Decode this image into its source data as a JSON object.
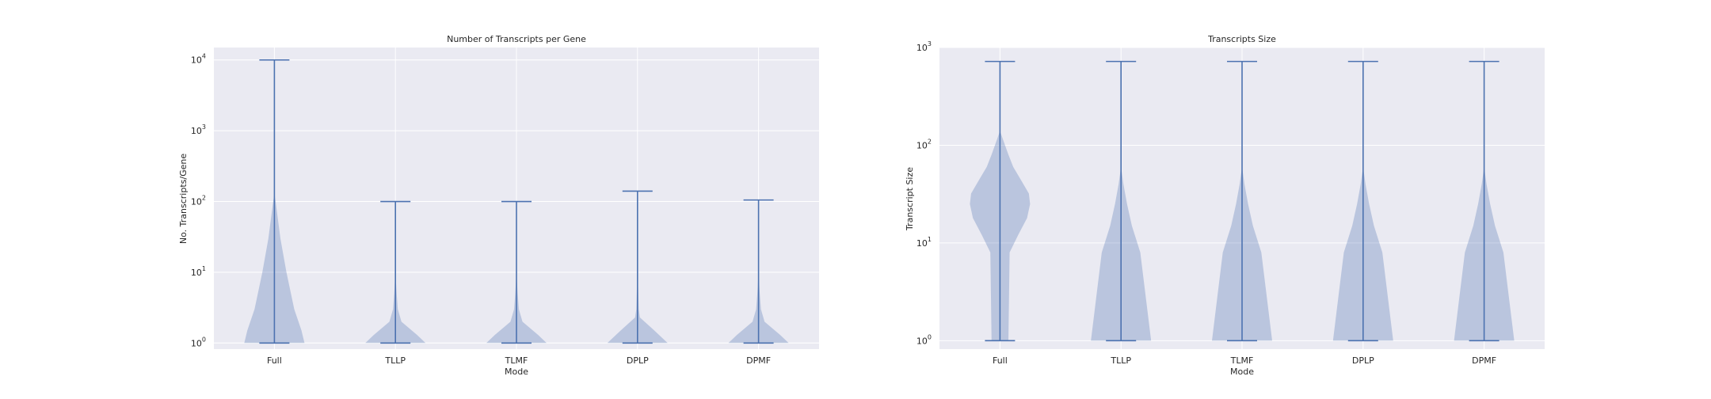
{
  "figure": {
    "background": "#ffffff",
    "plot_background": "#eaeaf2",
    "grid_color": "#ffffff",
    "violin_fill": "#4c72b0",
    "violin_alpha": 0.3,
    "line_color": "#4c72b0"
  },
  "chart_data": [
    {
      "type": "violin",
      "title": "Number of Transcripts per Gene",
      "xlabel": "Mode",
      "ylabel": "No. Transcripts/Gene",
      "yscale": "log",
      "ylim": [
        0.82,
        15000
      ],
      "grid": true,
      "categories": [
        "Full",
        "TLLP",
        "TLMF",
        "DPLP",
        "DPMF"
      ],
      "yticks": [
        {
          "base": "10",
          "exp": "0",
          "value": 1
        },
        {
          "base": "10",
          "exp": "1",
          "value": 10
        },
        {
          "base": "10",
          "exp": "2",
          "value": 100
        },
        {
          "base": "10",
          "exp": "3",
          "value": 1000
        },
        {
          "base": "10",
          "exp": "4",
          "value": 10000
        }
      ],
      "series": [
        {
          "category": "Full",
          "min": 1,
          "max": 10000,
          "density": [
            [
              1,
              0.5
            ],
            [
              1.5,
              0.45
            ],
            [
              3,
              0.33
            ],
            [
              10,
              0.2
            ],
            [
              30,
              0.1
            ],
            [
              100,
              0.02
            ],
            [
              130,
              0.0
            ]
          ]
        },
        {
          "category": "TLLP",
          "min": 1,
          "max": 100,
          "density": [
            [
              1,
              0.5
            ],
            [
              1.3,
              0.36
            ],
            [
              2,
              0.1
            ],
            [
              3,
              0.04
            ],
            [
              5,
              0.02
            ],
            [
              10,
              0.0
            ]
          ]
        },
        {
          "category": "TLMF",
          "min": 1,
          "max": 100,
          "density": [
            [
              1,
              0.5
            ],
            [
              1.3,
              0.36
            ],
            [
              2,
              0.1
            ],
            [
              3,
              0.04
            ],
            [
              5,
              0.02
            ],
            [
              10,
              0.0
            ]
          ]
        },
        {
          "category": "DPLP",
          "min": 1,
          "max": 140,
          "density": [
            [
              1,
              0.5
            ],
            [
              1.5,
              0.28
            ],
            [
              2.3,
              0.04
            ],
            [
              3,
              0.02
            ],
            [
              6,
              0.01
            ],
            [
              10,
              0.0
            ]
          ]
        },
        {
          "category": "DPMF",
          "min": 1,
          "max": 105,
          "density": [
            [
              1,
              0.5
            ],
            [
              1.3,
              0.36
            ],
            [
              2,
              0.1
            ],
            [
              3,
              0.04
            ],
            [
              5,
              0.02
            ],
            [
              10,
              0.0
            ]
          ]
        }
      ]
    },
    {
      "type": "violin",
      "title": "Transcripts Size",
      "xlabel": "Mode",
      "ylabel": "Transcript Size",
      "yscale": "log",
      "ylim": [
        0.82,
        1000
      ],
      "grid": true,
      "categories": [
        "Full",
        "TLLP",
        "TLMF",
        "DPLP",
        "DPMF"
      ],
      "yticks": [
        {
          "base": "10",
          "exp": "0",
          "value": 1
        },
        {
          "base": "10",
          "exp": "1",
          "value": 10
        },
        {
          "base": "10",
          "exp": "2",
          "value": 100
        },
        {
          "base": "10",
          "exp": "3",
          "value": 1000
        }
      ],
      "series": [
        {
          "category": "Full",
          "min": 1,
          "max": 720,
          "density": [
            [
              1,
              0.14
            ],
            [
              8,
              0.16
            ],
            [
              12,
              0.3
            ],
            [
              18,
              0.45
            ],
            [
              25,
              0.5
            ],
            [
              32,
              0.48
            ],
            [
              45,
              0.34
            ],
            [
              60,
              0.22
            ],
            [
              80,
              0.14
            ],
            [
              110,
              0.06
            ],
            [
              140,
              0.0
            ]
          ]
        },
        {
          "category": "TLLP",
          "min": 1,
          "max": 720,
          "density": [
            [
              1,
              0.5
            ],
            [
              8,
              0.32
            ],
            [
              15,
              0.18
            ],
            [
              25,
              0.1
            ],
            [
              40,
              0.04
            ],
            [
              60,
              0.0
            ]
          ]
        },
        {
          "category": "TLMF",
          "min": 1,
          "max": 720,
          "density": [
            [
              1,
              0.5
            ],
            [
              8,
              0.32
            ],
            [
              15,
              0.18
            ],
            [
              25,
              0.1
            ],
            [
              40,
              0.04
            ],
            [
              60,
              0.0
            ]
          ]
        },
        {
          "category": "DPLP",
          "min": 1,
          "max": 720,
          "density": [
            [
              1,
              0.5
            ],
            [
              8,
              0.32
            ],
            [
              15,
              0.18
            ],
            [
              25,
              0.1
            ],
            [
              40,
              0.04
            ],
            [
              60,
              0.0
            ]
          ]
        },
        {
          "category": "DPMF",
          "min": 1,
          "max": 720,
          "density": [
            [
              1,
              0.5
            ],
            [
              8,
              0.32
            ],
            [
              15,
              0.18
            ],
            [
              25,
              0.1
            ],
            [
              40,
              0.04
            ],
            [
              60,
              0.0
            ]
          ]
        }
      ]
    }
  ]
}
